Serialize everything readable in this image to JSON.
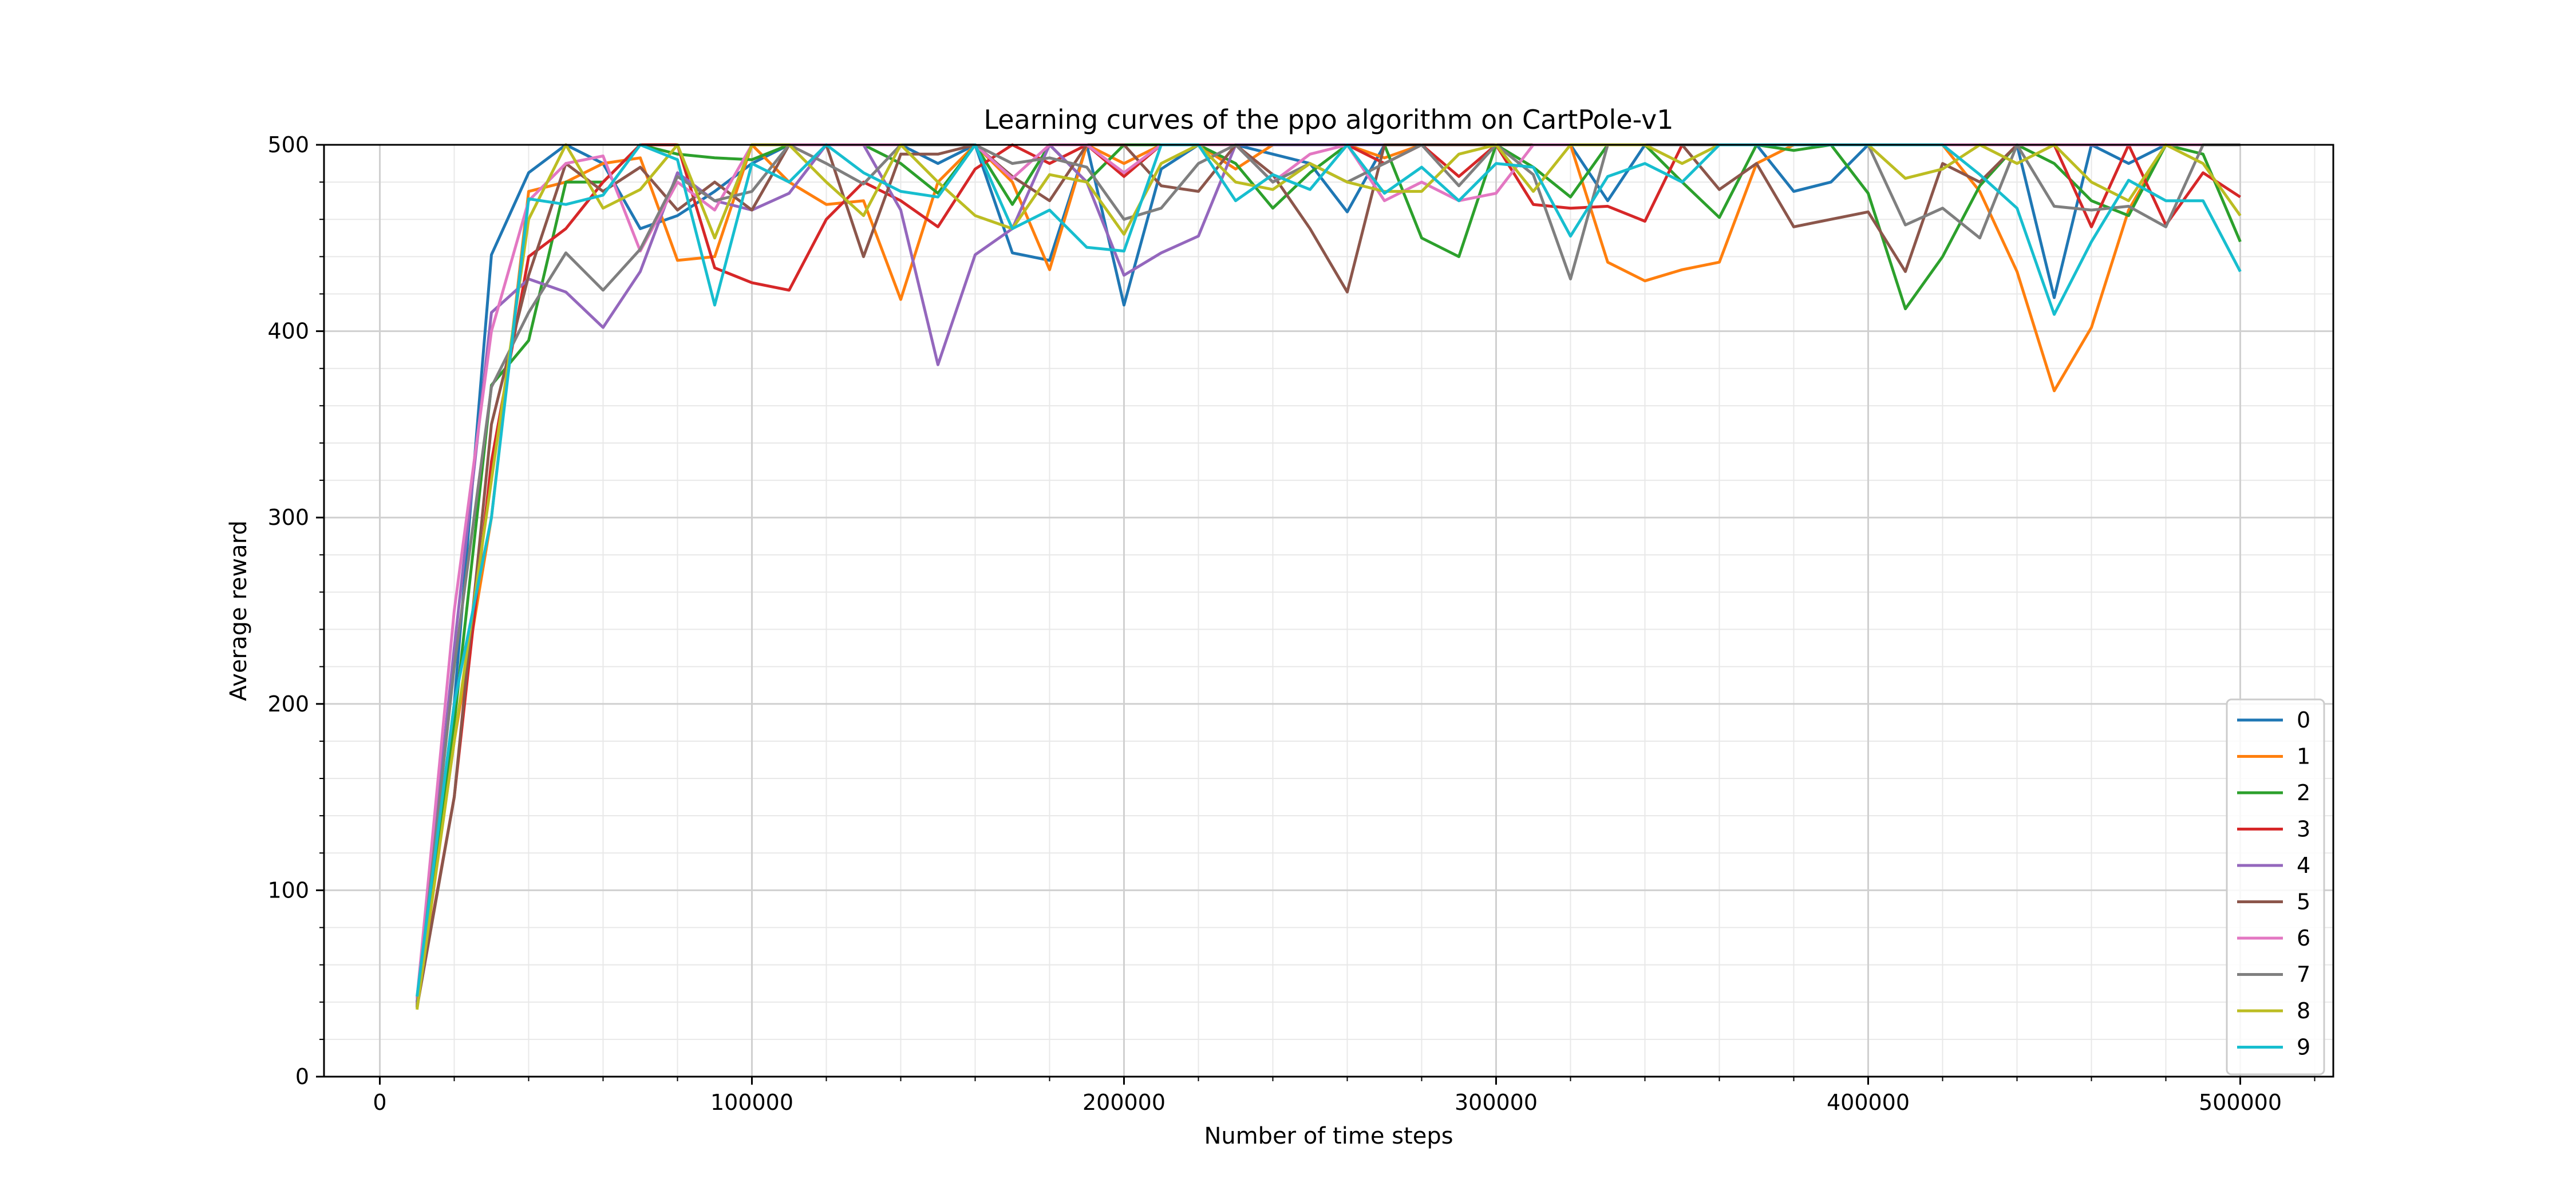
{
  "chart_data": {
    "type": "line",
    "title": "Learning curves of the ppo algorithm on CartPole-v1",
    "xlabel": "Number of time steps",
    "ylabel": "Average reward",
    "xlim": [
      -15000,
      525000
    ],
    "ylim": [
      0,
      500
    ],
    "xticks": [
      0,
      100000,
      200000,
      300000,
      400000,
      500000
    ],
    "yticks": [
      0,
      100,
      200,
      300,
      400,
      500
    ],
    "xtick_labels": [
      "0",
      "100000",
      "200000",
      "300000",
      "400000",
      "500000"
    ],
    "ytick_labels": [
      "0",
      "100",
      "200",
      "300",
      "400",
      "500"
    ],
    "grid": true,
    "minor_grid": true,
    "legend_position": "lower-right",
    "x": [
      10000,
      20000,
      30000,
      40000,
      50000,
      60000,
      70000,
      80000,
      90000,
      100000,
      110000,
      120000,
      130000,
      140000,
      150000,
      160000,
      170000,
      180000,
      190000,
      200000,
      210000,
      220000,
      230000,
      240000,
      250000,
      260000,
      270000,
      280000,
      290000,
      300000,
      310000,
      320000,
      330000,
      340000,
      350000,
      360000,
      370000,
      380000,
      390000,
      400000,
      410000,
      420000,
      430000,
      440000,
      450000,
      460000,
      470000,
      480000,
      490000,
      500000
    ],
    "series": [
      {
        "name": "0",
        "color": "#1f77b4",
        "values": [
          40,
          200,
          441,
          485,
          500,
          490,
          455,
          462,
          475,
          490,
          500,
          500,
          500,
          500,
          490,
          500,
          442,
          438,
          500,
          414,
          487,
          500,
          500,
          495,
          490,
          464,
          500,
          500,
          500,
          500,
          500,
          500,
          470,
          500,
          500,
          500,
          500,
          475,
          480,
          500,
          500,
          500,
          500,
          500,
          418,
          500,
          490,
          500,
          500,
          500
        ]
      },
      {
        "name": "1",
        "color": "#ff7f0e",
        "values": [
          38,
          180,
          300,
          475,
          480,
          490,
          493,
          438,
          440,
          500,
          480,
          468,
          470,
          417,
          480,
          500,
          480,
          433,
          500,
          490,
          500,
          500,
          487,
          500,
          500,
          500,
          493,
          500,
          500,
          500,
          500,
          500,
          437,
          427,
          433,
          437,
          490,
          500,
          500,
          500,
          500,
          500,
          475,
          432,
          368,
          402,
          465,
          500,
          500,
          500
        ]
      },
      {
        "name": "2",
        "color": "#2ca02c",
        "values": [
          37,
          190,
          371,
          395,
          480,
          480,
          500,
          495,
          493,
          492,
          500,
          500,
          500,
          490,
          474,
          500,
          468,
          500,
          480,
          500,
          500,
          500,
          490,
          466,
          485,
          500,
          500,
          450,
          440,
          500,
          488,
          472,
          500,
          500,
          480,
          461,
          500,
          497,
          500,
          474,
          412,
          440,
          478,
          500,
          490,
          470,
          462,
          500,
          495,
          448
        ]
      },
      {
        "name": "3",
        "color": "#d62728",
        "values": [
          39,
          150,
          330,
          440,
          455,
          480,
          500,
          500,
          434,
          426,
          422,
          460,
          480,
          470,
          456,
          487,
          500,
          490,
          500,
          483,
          500,
          500,
          500,
          500,
          500,
          500,
          490,
          500,
          483,
          500,
          468,
          466,
          467,
          459,
          500,
          500,
          500,
          500,
          500,
          500,
          500,
          500,
          500,
          500,
          500,
          456,
          500,
          457,
          485,
          472
        ]
      },
      {
        "name": "4",
        "color": "#9467bd",
        "values": [
          40,
          230,
          410,
          428,
          421,
          402,
          432,
          485,
          470,
          465,
          474,
          500,
          500,
          465,
          382,
          441,
          455,
          500,
          480,
          430,
          442,
          451,
          500,
          500,
          500,
          500,
          500,
          500,
          500,
          500,
          500,
          500,
          500,
          500,
          500,
          500,
          500,
          500,
          500,
          500,
          500,
          500,
          500,
          500,
          500,
          500,
          500,
          500,
          500,
          500
        ]
      },
      {
        "name": "5",
        "color": "#8c564b",
        "values": [
          37,
          150,
          350,
          430,
          490,
          475,
          488,
          465,
          480,
          465,
          500,
          500,
          440,
          495,
          495,
          500,
          483,
          470,
          500,
          500,
          478,
          475,
          500,
          484,
          455,
          421,
          500,
          500,
          500,
          500,
          500,
          500,
          500,
          500,
          500,
          476,
          490,
          456,
          460,
          464,
          432,
          490,
          480,
          500,
          500,
          500,
          500,
          500,
          500,
          500
        ]
      },
      {
        "name": "6",
        "color": "#e377c2",
        "values": [
          42,
          250,
          400,
          470,
          490,
          494,
          443,
          480,
          465,
          500,
          500,
          500,
          500,
          500,
          500,
          500,
          482,
          500,
          500,
          485,
          500,
          500,
          500,
          480,
          495,
          500,
          470,
          480,
          470,
          474,
          500,
          500,
          500,
          500,
          500,
          500,
          500,
          500,
          500,
          500,
          500,
          500,
          500,
          500,
          500,
          500,
          500,
          500,
          500,
          500
        ]
      },
      {
        "name": "7",
        "color": "#7f7f7f",
        "values": [
          38,
          220,
          370,
          410,
          442,
          422,
          444,
          483,
          470,
          475,
          500,
          490,
          479,
          500,
          500,
          500,
          490,
          493,
          488,
          460,
          466,
          490,
          500,
          480,
          490,
          480,
          490,
          500,
          478,
          500,
          484,
          428,
          500,
          500,
          500,
          500,
          500,
          500,
          500,
          500,
          457,
          466,
          450,
          500,
          467,
          465,
          467,
          456,
          500,
          500
        ]
      },
      {
        "name": "8",
        "color": "#bcbd22",
        "values": [
          36,
          180,
          320,
          460,
          500,
          466,
          476,
          500,
          450,
          500,
          500,
          480,
          462,
          500,
          480,
          462,
          455,
          484,
          480,
          452,
          490,
          500,
          480,
          476,
          490,
          480,
          475,
          475,
          495,
          500,
          475,
          500,
          500,
          500,
          490,
          500,
          500,
          500,
          500,
          500,
          482,
          487,
          500,
          490,
          500,
          480,
          470,
          500,
          490,
          462
        ]
      },
      {
        "name": "9",
        "color": "#17becf",
        "values": [
          43,
          200,
          300,
          471,
          468,
          473,
          500,
          492,
          414,
          490,
          480,
          500,
          485,
          475,
          472,
          500,
          455,
          465,
          445,
          443,
          500,
          500,
          470,
          484,
          476,
          500,
          474,
          488,
          470,
          490,
          488,
          451,
          483,
          490,
          480,
          500,
          500,
          500,
          500,
          500,
          500,
          500,
          484,
          466,
          409,
          448,
          481,
          470,
          470,
          432
        ]
      }
    ]
  }
}
